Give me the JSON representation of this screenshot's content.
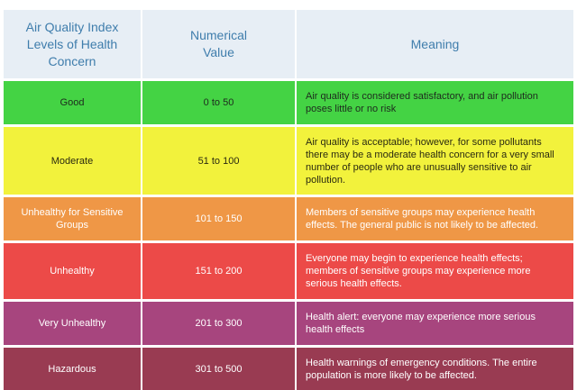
{
  "header": {
    "col1": "Air Quality Index\nLevels of Health\nConcern",
    "col2": "Numerical\nValue",
    "col3": "Meaning"
  },
  "rows": [
    {
      "level": "Good",
      "value": "0 to 50",
      "meaning": "Air quality is considered satisfactory, and air pollution poses little or no risk"
    },
    {
      "level": "Moderate",
      "value": "51 to 100",
      "meaning": "Air quality is acceptable; however, for some pollutants there may be a moderate health concern for a very small number of people who are unusually sensitive to air pollution."
    },
    {
      "level": "Unhealthy for Sensitive Groups",
      "value": "101 to 150",
      "meaning": "Members of sensitive groups may experience health effects. The general public is not likely to be affected."
    },
    {
      "level": "Unhealthy",
      "value": "151 to 200",
      "meaning": "Everyone may begin to experience health effects; members of sensitive groups may experience more serious health effects."
    },
    {
      "level": "Very Unhealthy",
      "value": "201 to 300",
      "meaning": "Health alert: everyone may experience more serious health effects"
    },
    {
      "level": "Hazardous",
      "value": "301 to 500",
      "meaning": "Health warnings of emergency conditions. The entire population is more likely to be affected."
    }
  ],
  "colors": {
    "header_bg": "#e7eef5",
    "header_text": "#3f7dac",
    "good": "#44d344",
    "moderate": "#f2f23c",
    "unhealthy_sensitive": "#ef9746",
    "unhealthy": "#ec4a48",
    "very_unhealthy": "#a7457e",
    "hazardous": "#993b52"
  }
}
